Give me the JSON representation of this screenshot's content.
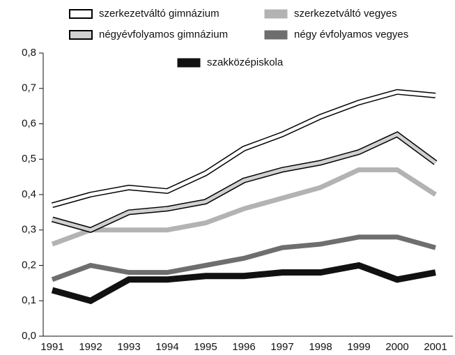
{
  "chart_data": {
    "type": "line",
    "categories": [
      "1991",
      "1992",
      "1993",
      "1994",
      "1995",
      "1996",
      "1997",
      "1998",
      "1999",
      "2000",
      "2001"
    ],
    "series": [
      {
        "name": "szerkezetváltó gimnázium",
        "color": "#ffffff",
        "outline": "#000000",
        "values": [
          0.37,
          0.4,
          0.42,
          0.41,
          0.46,
          0.53,
          0.57,
          0.62,
          0.66,
          0.69,
          0.68
        ]
      },
      {
        "name": "szerkezetváltó vegyes",
        "color": "#b3b3b3",
        "values": [
          0.26,
          0.3,
          0.3,
          0.3,
          0.32,
          0.36,
          0.39,
          0.42,
          0.47,
          0.47,
          0.4
        ]
      },
      {
        "name": "négyévfolyamos gimnázium",
        "color": "#d0d0d0",
        "outline": "#000000",
        "values": [
          0.33,
          0.3,
          0.35,
          0.36,
          0.38,
          0.44,
          0.47,
          0.49,
          0.52,
          0.57,
          0.49
        ]
      },
      {
        "name": "négy évfolyamos vegyes",
        "color": "#6e6e6e",
        "values": [
          0.16,
          0.2,
          0.18,
          0.18,
          0.2,
          0.22,
          0.25,
          0.26,
          0.28,
          0.28,
          0.25
        ]
      },
      {
        "name": "szakközépiskola",
        "color": "#111111",
        "values": [
          0.13,
          0.1,
          0.16,
          0.16,
          0.17,
          0.17,
          0.18,
          0.18,
          0.2,
          0.16,
          0.18
        ]
      }
    ],
    "ylim": [
      0,
      0.8
    ],
    "yticks": [
      {
        "value": 0,
        "label": "0,0"
      },
      {
        "value": 0.1,
        "label": "0,1"
      },
      {
        "value": 0.2,
        "label": "0,2"
      },
      {
        "value": 0.3,
        "label": "0,3"
      },
      {
        "value": 0.4,
        "label": "0,4"
      },
      {
        "value": 0.5,
        "label": "0,5"
      },
      {
        "value": 0.6,
        "label": "0,6"
      },
      {
        "value": 0.7,
        "label": "0,7"
      },
      {
        "value": 0.8,
        "label": "0,8"
      }
    ],
    "grid": false
  }
}
